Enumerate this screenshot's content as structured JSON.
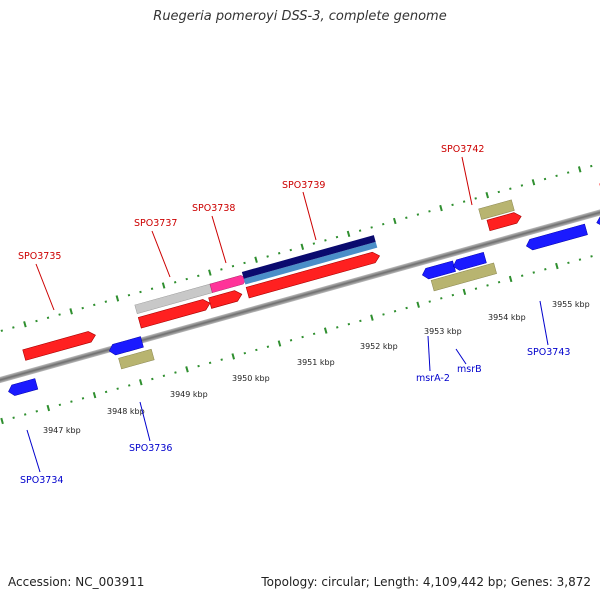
{
  "title": "Ruegeria pomeroyi DSS-3, complete genome",
  "footer": {
    "accession": "Accession: NC_003911",
    "info": "Topology: circular; Length: 4,109,442 bp; Genes: 3,872"
  },
  "scale_labels": [
    "3947 kbp",
    "3948 kbp",
    "3949 kbp",
    "3950 kbp",
    "3951 kbp",
    "3952 kbp",
    "3953 kbp",
    "3954 kbp",
    "3955 kbp"
  ],
  "gene_labels": {
    "SPO3734": "SPO3734",
    "SPO3735": "SPO3735",
    "SPO3736": "SPO3736",
    "SPO3737": "SPO3737",
    "SPO3738": "SPO3738",
    "SPO3739": "SPO3739",
    "SPO3742": "SPO3742",
    "SPO3743": "SPO3743",
    "msrA2": "msrA-2",
    "msrB": "msrB"
  },
  "colors": {
    "forward_label": "#cc0000",
    "reverse_label": "#0000cc",
    "red": "#ff2020",
    "blue": "#1a1aff",
    "olive": "#b8b470",
    "pink": "#ff3399",
    "gray": "#c8c8c8",
    "navy": "#0a0a6e",
    "steel": "#4a8ec8",
    "tick": "#2f8f2f"
  }
}
